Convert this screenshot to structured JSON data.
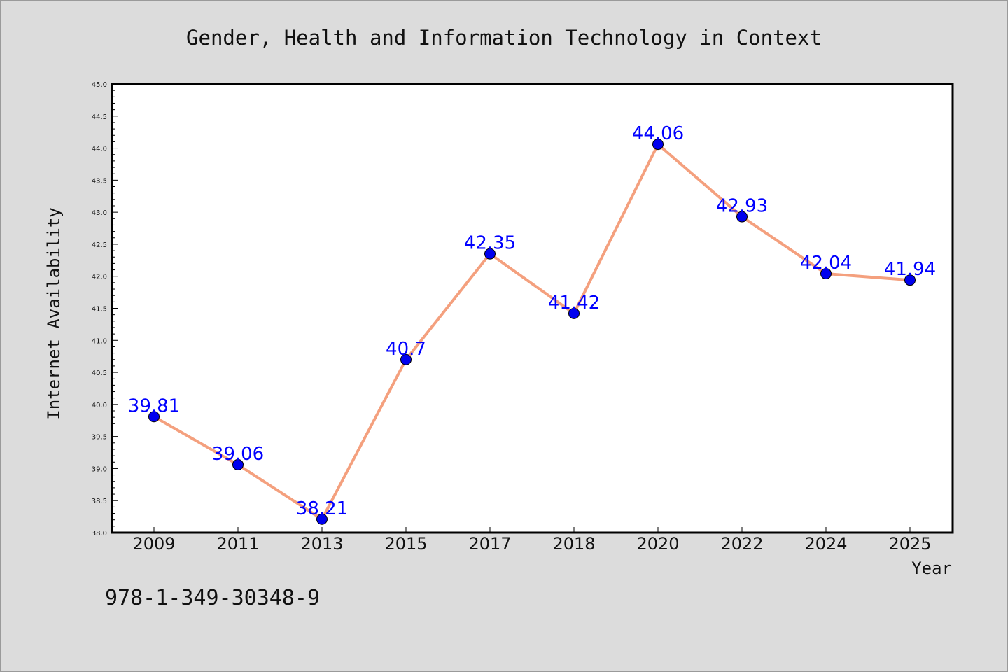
{
  "chart_data": {
    "type": "line",
    "title": "Gender, Health and Information Technology in Context",
    "xlabel": "Year",
    "ylabel": "Internet Availability",
    "categories": [
      "2009",
      "2011",
      "2013",
      "2015",
      "2017",
      "2018",
      "2020",
      "2022",
      "2024",
      "2025"
    ],
    "values": [
      39.81,
      39.06,
      38.21,
      40.7,
      42.35,
      41.42,
      44.06,
      42.93,
      42.04,
      41.94
    ],
    "data_labels": [
      "39.81",
      "39.06",
      "38.21",
      "40.7",
      "42.35",
      "41.42",
      "44.06",
      "42.93",
      "42.04",
      "41.94"
    ],
    "ylim": [
      38.0,
      45.0
    ],
    "yticks": [
      "38.0",
      "38.5",
      "39.0",
      "39.5",
      "40.0",
      "40.5",
      "41.0",
      "41.5",
      "42.0",
      "42.5",
      "43.0",
      "43.5",
      "44.0",
      "44.5",
      "45.0"
    ],
    "grid": false,
    "line_color": "#f4a07e",
    "marker_color": "#0000ee",
    "label_color": "#0000ff"
  },
  "footer": {
    "isbn": "978-1-349-30348-9"
  }
}
